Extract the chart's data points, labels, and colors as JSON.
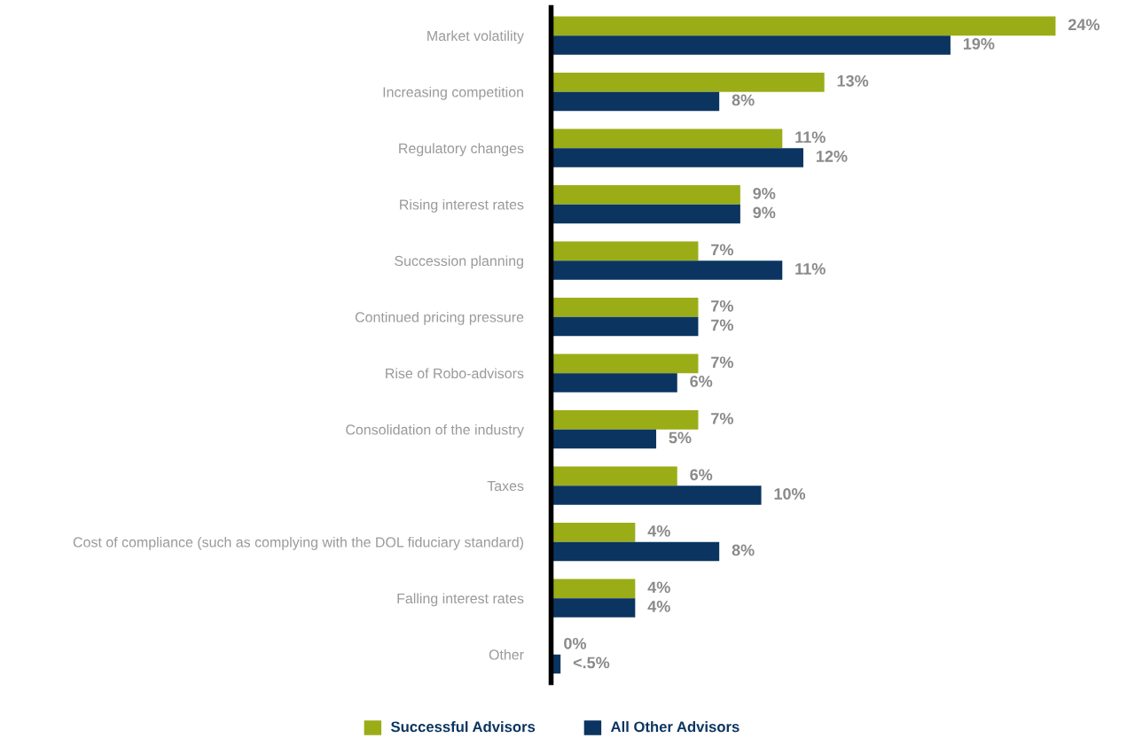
{
  "chart_data": {
    "type": "bar",
    "orientation": "horizontal",
    "categories": [
      "Market volatility",
      "Increasing competition",
      "Regulatory changes",
      "Rising interest rates",
      "Succession planning",
      "Continued pricing pressure",
      "Rise of Robo-advisors",
      "Consolidation of the industry",
      "Taxes",
      "Cost of compliance (such as complying with the DOL fiduciary standard)",
      "Falling interest rates",
      "Other"
    ],
    "series": [
      {
        "name": "Successful Advisors",
        "color": "#9aad17",
        "values": [
          24,
          13,
          11,
          9,
          7,
          7,
          7,
          7,
          6,
          4,
          4,
          0
        ],
        "value_labels": [
          "24%",
          "13%",
          "11%",
          "9%",
          "7%",
          "7%",
          "7%",
          "7%",
          "6%",
          "4%",
          "4%",
          "0%"
        ]
      },
      {
        "name": "All Other Advisors",
        "color": "#0b3560",
        "values": [
          19,
          8,
          12,
          9,
          11,
          7,
          6,
          5,
          10,
          8,
          4,
          0.45
        ],
        "value_labels": [
          "19%",
          "8%",
          "12%",
          "9%",
          "11%",
          "7%",
          "6%",
          "5%",
          "10%",
          "8%",
          "4%",
          "<.5%"
        ]
      }
    ],
    "legend": "bottom",
    "grid": false
  }
}
